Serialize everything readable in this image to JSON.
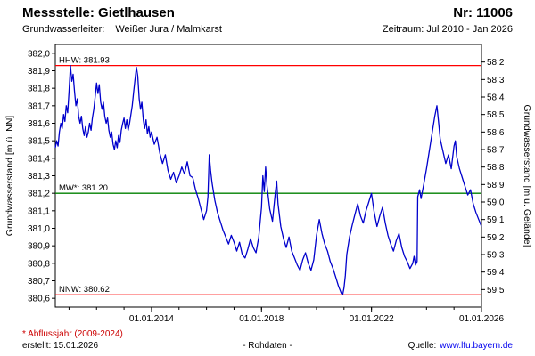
{
  "header": {
    "station_label": "Messstelle: Gietlhausen",
    "number_label": "Nr: 11006",
    "aquifer_label": "Grundwasserleiter:",
    "aquifer_value": "Weißer Jura / Malmkarst",
    "period_label": "Zeitraum: Jul 2010 - Jan 2026"
  },
  "footer": {
    "note": "* Abflussjahr (2009-2024)",
    "created": "erstellt: 15.01.2026",
    "center": "- Rohdaten -",
    "source_label": "Quelle:",
    "source_link": "www.lfu.bayern.de"
  },
  "colors": {
    "series_blue": "#0000cc",
    "limit_red": "#ff0000",
    "mean_green": "#008000",
    "note_red": "#cc0000",
    "link_blue": "#0000ee"
  },
  "chart_data": {
    "type": "line",
    "title": "",
    "ylabel_left": "Grundwasserstand [m ü. NN]",
    "ylabel_right": "Grundwasserstand [m u. Gelände]",
    "xlim": [
      2010.5,
      2026.0
    ],
    "ylim": [
      380.55,
      382.05
    ],
    "ground_level": 440.15,
    "grid": false,
    "legend": "none",
    "yticks_left": [
      {
        "v": 382.0,
        "label": "382,0"
      },
      {
        "v": 381.9,
        "label": "381,9"
      },
      {
        "v": 381.8,
        "label": "381,8"
      },
      {
        "v": 381.7,
        "label": "381,7"
      },
      {
        "v": 381.6,
        "label": "381,6"
      },
      {
        "v": 381.5,
        "label": "381,5"
      },
      {
        "v": 381.4,
        "label": "381,4"
      },
      {
        "v": 381.3,
        "label": "381,3"
      },
      {
        "v": 381.2,
        "label": "381,2"
      },
      {
        "v": 381.1,
        "label": "381,1"
      },
      {
        "v": 381.0,
        "label": "381,0"
      },
      {
        "v": 380.9,
        "label": "380,9"
      },
      {
        "v": 380.8,
        "label": "380,8"
      },
      {
        "v": 380.7,
        "label": "380,7"
      },
      {
        "v": 380.6,
        "label": "380,6"
      }
    ],
    "yticks_right": [
      {
        "depth": 58.2,
        "label": "58,2"
      },
      {
        "depth": 58.3,
        "label": "58,3"
      },
      {
        "depth": 58.4,
        "label": "58,4"
      },
      {
        "depth": 58.5,
        "label": "58,5"
      },
      {
        "depth": 58.6,
        "label": "58,6"
      },
      {
        "depth": 58.7,
        "label": "58,7"
      },
      {
        "depth": 58.8,
        "label": "58,8"
      },
      {
        "depth": 58.9,
        "label": "58,9"
      },
      {
        "depth": 59.0,
        "label": "59,0"
      },
      {
        "depth": 59.1,
        "label": "59,1"
      },
      {
        "depth": 59.2,
        "label": "59,2"
      },
      {
        "depth": 59.3,
        "label": "59,3"
      },
      {
        "depth": 59.4,
        "label": "59,4"
      },
      {
        "depth": 59.5,
        "label": "59,5"
      }
    ],
    "xticks": [
      {
        "v": 2014.0,
        "label": "01.01.2014"
      },
      {
        "v": 2018.0,
        "label": "01.01.2018"
      },
      {
        "v": 2022.0,
        "label": "01.01.2022"
      },
      {
        "v": 2026.0,
        "label": "01.01.2026"
      }
    ],
    "reference_lines": [
      {
        "name": "HHW",
        "label": "HHW: 381.93",
        "value": 381.93,
        "color": "#ff0000"
      },
      {
        "name": "MW",
        "label": "MW*: 381.20",
        "value": 381.2,
        "color": "#008000"
      },
      {
        "name": "NNW",
        "label": "NNW: 380.62",
        "value": 380.62,
        "color": "#ff0000"
      }
    ],
    "series": [
      {
        "name": "Grundwasserstand Rohdaten",
        "color": "#0000cc",
        "x": [
          2010.5,
          2010.55,
          2010.6,
          2010.65,
          2010.7,
          2010.75,
          2010.8,
          2010.85,
          2010.9,
          2010.95,
          2011.0,
          2011.05,
          2011.1,
          2011.15,
          2011.2,
          2011.25,
          2011.3,
          2011.35,
          2011.4,
          2011.45,
          2011.5,
          2011.55,
          2011.6,
          2011.65,
          2011.7,
          2011.75,
          2011.8,
          2011.85,
          2011.9,
          2011.95,
          2012.0,
          2012.05,
          2012.1,
          2012.15,
          2012.2,
          2012.25,
          2012.3,
          2012.35,
          2012.4,
          2012.45,
          2012.5,
          2012.55,
          2012.6,
          2012.65,
          2012.7,
          2012.75,
          2012.8,
          2012.85,
          2012.9,
          2012.95,
          2013.0,
          2013.05,
          2013.1,
          2013.15,
          2013.2,
          2013.25,
          2013.3,
          2013.35,
          2013.4,
          2013.45,
          2013.5,
          2013.55,
          2013.6,
          2013.65,
          2013.7,
          2013.75,
          2013.8,
          2013.85,
          2013.9,
          2013.95,
          2014.0,
          2014.1,
          2014.2,
          2014.3,
          2014.4,
          2014.5,
          2014.6,
          2014.7,
          2014.8,
          2014.9,
          2015.0,
          2015.1,
          2015.2,
          2015.3,
          2015.4,
          2015.5,
          2015.6,
          2015.7,
          2015.8,
          2015.9,
          2016.0,
          2016.05,
          2016.1,
          2016.15,
          2016.2,
          2016.3,
          2016.4,
          2016.5,
          2016.6,
          2016.7,
          2016.8,
          2016.9,
          2017.0,
          2017.1,
          2017.2,
          2017.3,
          2017.4,
          2017.5,
          2017.6,
          2017.7,
          2017.8,
          2017.9,
          2018.0,
          2018.05,
          2018.1,
          2018.15,
          2018.2,
          2018.3,
          2018.4,
          2018.5,
          2018.55,
          2018.6,
          2018.7,
          2018.8,
          2018.9,
          2019.0,
          2019.1,
          2019.2,
          2019.3,
          2019.4,
          2019.5,
          2019.6,
          2019.7,
          2019.8,
          2019.9,
          2020.0,
          2020.1,
          2020.2,
          2020.3,
          2020.4,
          2020.5,
          2020.6,
          2020.7,
          2020.8,
          2020.9,
          2020.95,
          2021.0,
          2021.05,
          2021.1,
          2021.2,
          2021.3,
          2021.4,
          2021.5,
          2021.6,
          2021.7,
          2021.8,
          2021.9,
          2022.0,
          2022.1,
          2022.2,
          2022.3,
          2022.4,
          2022.5,
          2022.6,
          2022.7,
          2022.8,
          2022.9,
          2023.0,
          2023.1,
          2023.2,
          2023.3,
          2023.4,
          2023.5,
          2023.55,
          2023.6,
          2023.66,
          2023.68,
          2023.75,
          2023.8,
          2023.9,
          2024.0,
          2024.1,
          2024.2,
          2024.3,
          2024.38,
          2024.45,
          2024.5,
          2024.6,
          2024.7,
          2024.8,
          2024.9,
          2025.0,
          2025.05,
          2025.1,
          2025.2,
          2025.3,
          2025.4,
          2025.5,
          2025.6,
          2025.7,
          2025.8,
          2025.9,
          2026.0
        ],
        "y": [
          381.46,
          381.5,
          381.47,
          381.55,
          381.6,
          381.57,
          381.65,
          381.61,
          381.7,
          381.66,
          381.78,
          381.93,
          381.84,
          381.88,
          381.78,
          381.7,
          381.74,
          381.64,
          381.6,
          381.64,
          381.57,
          381.53,
          381.58,
          381.52,
          381.55,
          381.6,
          381.56,
          381.63,
          381.68,
          381.75,
          381.83,
          381.77,
          381.82,
          381.72,
          381.68,
          381.72,
          381.64,
          381.6,
          381.63,
          381.56,
          381.52,
          381.55,
          381.48,
          381.45,
          381.5,
          381.46,
          381.53,
          381.49,
          381.56,
          381.6,
          381.63,
          381.57,
          381.62,
          381.56,
          381.6,
          381.65,
          381.7,
          381.78,
          381.85,
          381.92,
          381.87,
          381.74,
          381.68,
          381.72,
          381.62,
          381.57,
          381.62,
          381.54,
          381.58,
          381.52,
          381.55,
          381.48,
          381.52,
          381.43,
          381.37,
          381.42,
          381.33,
          381.28,
          381.32,
          381.26,
          381.3,
          381.35,
          381.31,
          381.38,
          381.3,
          381.29,
          381.22,
          381.17,
          381.11,
          381.05,
          381.1,
          381.18,
          381.42,
          381.33,
          381.26,
          381.16,
          381.09,
          381.04,
          380.99,
          380.95,
          380.91,
          380.96,
          380.92,
          380.87,
          380.92,
          380.85,
          380.83,
          380.88,
          380.94,
          380.89,
          380.86,
          380.95,
          381.12,
          381.3,
          381.21,
          381.35,
          381.24,
          381.11,
          381.04,
          381.2,
          381.27,
          381.14,
          381.01,
          380.94,
          380.89,
          380.95,
          380.87,
          380.83,
          380.79,
          380.76,
          380.82,
          380.86,
          380.8,
          380.76,
          380.82,
          380.96,
          381.05,
          380.97,
          380.91,
          380.87,
          380.81,
          380.77,
          380.72,
          380.67,
          380.63,
          380.62,
          380.66,
          380.73,
          380.85,
          380.95,
          381.02,
          381.08,
          381.14,
          381.07,
          381.03,
          381.1,
          381.15,
          381.2,
          381.09,
          381.01,
          381.07,
          381.12,
          381.03,
          380.96,
          380.91,
          380.87,
          380.93,
          380.97,
          380.89,
          380.84,
          380.81,
          380.77,
          380.8,
          380.84,
          380.79,
          380.81,
          381.18,
          381.22,
          381.17,
          381.25,
          381.34,
          381.44,
          381.54,
          381.64,
          381.7,
          381.59,
          381.51,
          381.44,
          381.37,
          381.42,
          381.34,
          381.47,
          381.5,
          381.41,
          381.34,
          381.29,
          381.24,
          381.19,
          381.22,
          381.14,
          381.09,
          381.05,
          381.01
        ]
      }
    ]
  }
}
